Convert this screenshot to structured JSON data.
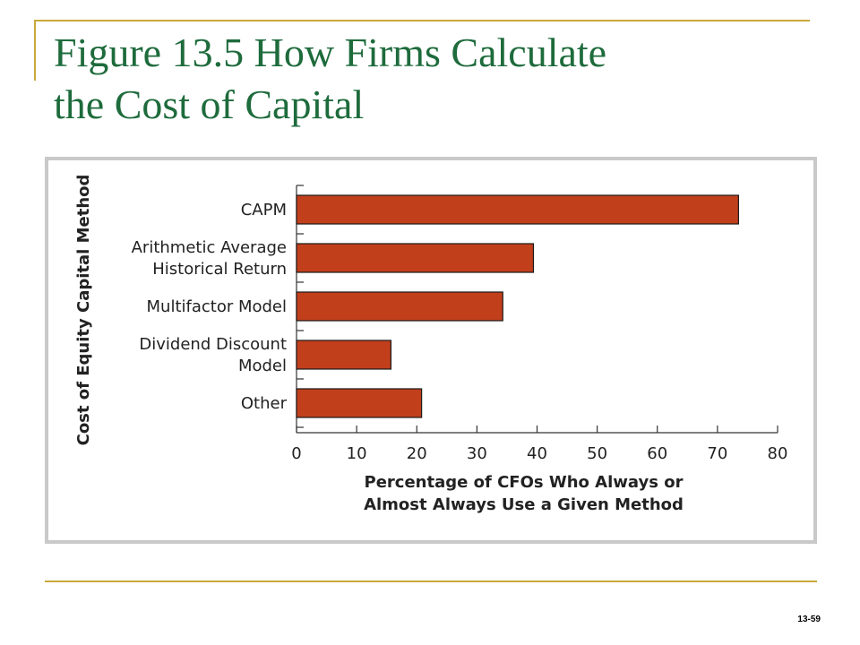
{
  "slide": {
    "title_line1": "Figure 13.5  How Firms Calculate",
    "title_line2": "the Cost of Capital",
    "slide_number": "13-59"
  },
  "colors": {
    "bar": "#c23f1c",
    "bar_outline": "#1a1a1a",
    "title": "#1e6b3c",
    "rule": "#c8a93a"
  },
  "chart_data": {
    "type": "bar",
    "orientation": "horizontal",
    "categories": [
      [
        "CAPM"
      ],
      [
        "Arithmetic Average",
        "Historical Return"
      ],
      [
        "Multifactor Model"
      ],
      [
        "Dividend Discount",
        "Model"
      ],
      [
        "Other"
      ]
    ],
    "values": [
      73.5,
      39.4,
      34.3,
      15.7,
      20.8
    ],
    "xlim": [
      0,
      80
    ],
    "xticks": [
      0,
      10,
      20,
      30,
      40,
      50,
      60,
      70,
      80
    ],
    "xlabel": [
      "Percentage of CFOs Who Always or",
      "Almost Always Use a Given Method"
    ],
    "ylabel": "Cost of Equity Capital Method",
    "grid": false,
    "legend": "none"
  }
}
